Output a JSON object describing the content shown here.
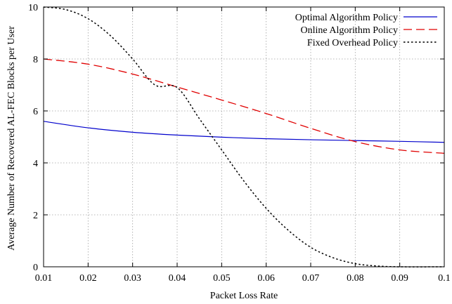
{
  "chart_data": {
    "type": "line",
    "title": "",
    "xlabel": "Packet Loss Rate",
    "ylabel": "Average Number of Recovered AL-FEC Blocks per User",
    "xlim": [
      0.01,
      0.1
    ],
    "ylim": [
      0,
      10
    ],
    "xticks": [
      0.01,
      0.02,
      0.03,
      0.04,
      0.05,
      0.06,
      0.07,
      0.08,
      0.09,
      0.1
    ],
    "xtick_labels": [
      "0.01",
      "0.02",
      "0.03",
      "0.04",
      "0.05",
      "0.06",
      "0.07",
      "0.08",
      "0.09",
      "0.1"
    ],
    "yticks": [
      0,
      2,
      4,
      6,
      8,
      10
    ],
    "ytick_labels": [
      "0",
      "2",
      "4",
      "6",
      "8",
      "10"
    ],
    "grid": true,
    "legend_position": "top-right",
    "series": [
      {
        "name": "Optimal Algorithm Policy",
        "color": "#0000cc",
        "dash": "solid",
        "x": [
          0.01,
          0.02,
          0.03,
          0.04,
          0.05,
          0.06,
          0.07,
          0.08,
          0.09,
          0.1
        ],
        "y": [
          5.6,
          5.35,
          5.18,
          5.07,
          4.99,
          4.93,
          4.89,
          4.86,
          4.83,
          4.79
        ]
      },
      {
        "name": "Online Algorithm Policy",
        "color": "#e00000",
        "dash": "dashed",
        "x": [
          0.01,
          0.02,
          0.03,
          0.04,
          0.05,
          0.06,
          0.07,
          0.08,
          0.09,
          0.1
        ],
        "y": [
          8.0,
          7.8,
          7.42,
          6.92,
          6.42,
          5.9,
          5.33,
          4.82,
          4.5,
          4.37
        ]
      },
      {
        "name": "Fixed Overhead Policy",
        "color": "#000000",
        "dash": "dotted",
        "x": [
          0.01,
          0.015,
          0.02,
          0.025,
          0.03,
          0.035,
          0.04,
          0.045,
          0.05,
          0.055,
          0.06,
          0.065,
          0.07,
          0.075,
          0.08,
          0.085,
          0.09,
          0.1
        ],
        "y": [
          10.0,
          9.9,
          9.55,
          8.9,
          8.0,
          7.0,
          6.9,
          5.7,
          4.5,
          3.3,
          2.25,
          1.4,
          0.75,
          0.35,
          0.12,
          0.03,
          0.0,
          0.0
        ]
      }
    ]
  }
}
